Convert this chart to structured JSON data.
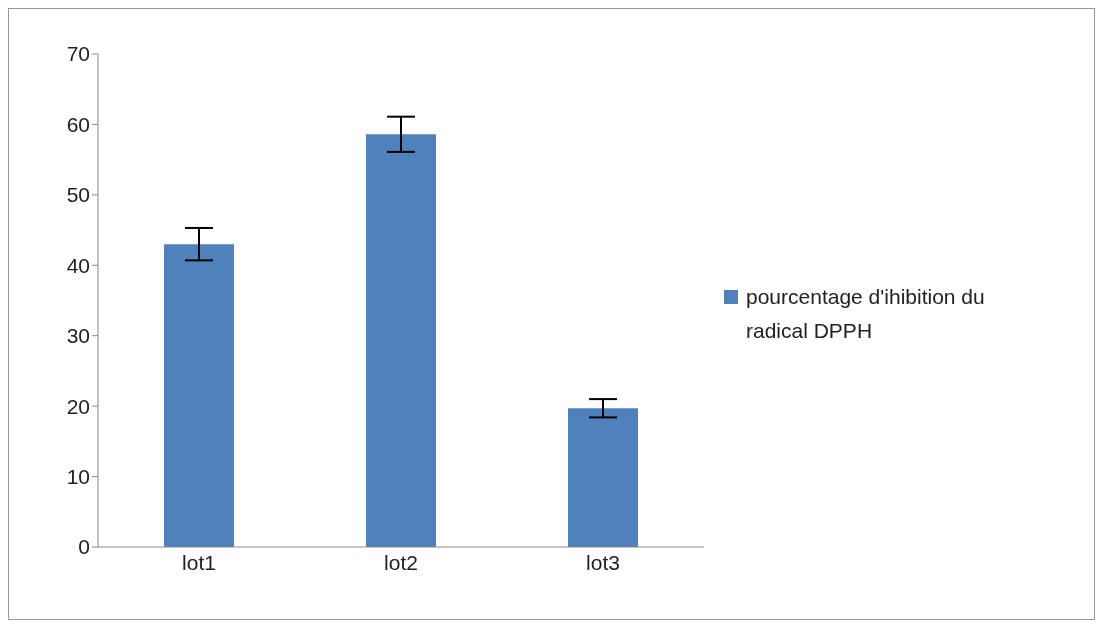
{
  "chart_data": {
    "type": "bar",
    "categories": [
      "lot1",
      "lot2",
      "lot3"
    ],
    "series": [
      {
        "name": "pourcentage d'ihibition du radical DPPH",
        "color": "#4f81bd",
        "values": [
          43,
          58.6,
          19.7
        ],
        "errors": [
          2.3,
          2.5,
          1.3
        ]
      }
    ],
    "ylim": [
      0,
      70
    ],
    "yticks": [
      0,
      10,
      20,
      30,
      40,
      50,
      60,
      70
    ],
    "grid": false,
    "legend": "right"
  }
}
